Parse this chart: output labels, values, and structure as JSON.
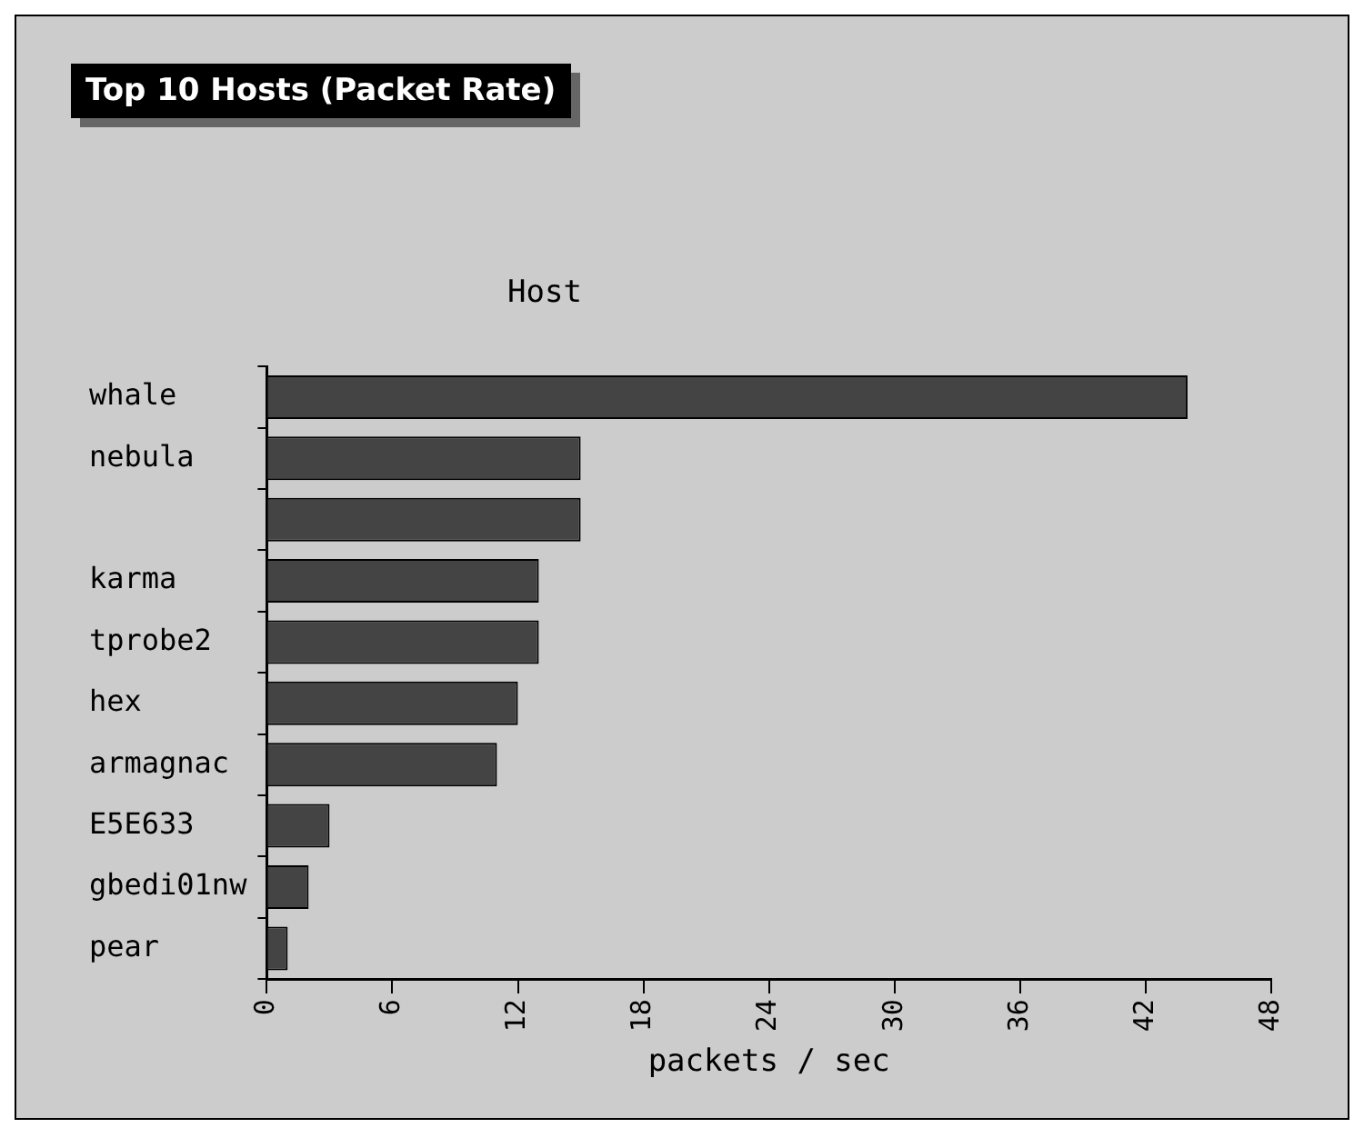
{
  "chart_data": {
    "type": "bar",
    "orientation": "horizontal",
    "title": "Top 10 Hosts (Packet Rate)",
    "ylabel": "Host",
    "xlabel": "packets / sec",
    "categories": [
      "whale",
      "nebula",
      null,
      "karma",
      "tprobe2",
      "hex",
      "armagnac",
      "E5E633",
      "gbedi01nw",
      "pear"
    ],
    "values": [
      44,
      15,
      15,
      13,
      13,
      12,
      11,
      3,
      2,
      1
    ],
    "color": "#444444",
    "xlim": [
      0,
      48
    ],
    "xticks": [
      0,
      6,
      12,
      18,
      24,
      30,
      36,
      42,
      48
    ],
    "grid": false,
    "legend": false
  }
}
